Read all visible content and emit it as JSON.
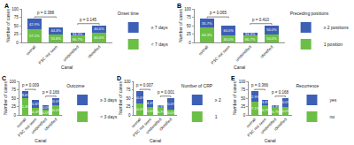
{
  "chart_data": [
    {
      "type": "bar",
      "panel": "A",
      "stacked": true,
      "grid": false,
      "legend": "top right",
      "x_label": "Canal",
      "y_label": "Number of cases",
      "legend_title": "Onset time",
      "categories": [
        "overall",
        "PSC not seen",
        "unidentified",
        "identified"
      ],
      "ylim": [
        0,
        100
      ],
      "yticks": [
        0,
        25,
        50,
        75,
        100
      ],
      "series": [
        {
          "name": "< 7 days",
          "color": "#6cbf45",
          "values": [
            40,
            25,
            20,
            30
          ],
          "labels": [
            "57.1%",
            "55.6%",
            "66.7%",
            "60.0%"
          ]
        },
        {
          "name": "≥ 7 days",
          "color": "#3d5fb5",
          "values": [
            30,
            20,
            10,
            20
          ],
          "labels": [
            "42.9%",
            "44.4%",
            "33.3%",
            "40.0%"
          ]
        }
      ],
      "annotations": [
        {
          "text": "p = 0.388",
          "categories": [
            "overall",
            "PSC not seen"
          ]
        },
        {
          "text": "p = 0.145",
          "categories": [
            "unidentified",
            "identified"
          ]
        }
      ]
    },
    {
      "type": "bar",
      "panel": "B",
      "stacked": true,
      "grid": false,
      "legend": "top right",
      "x_label": "Canal",
      "y_label": "Number of cases",
      "legend_title": "Preceding positions",
      "categories": [
        "overall",
        "PSC not seen",
        "unidentified",
        "identified"
      ],
      "ylim": [
        0,
        100
      ],
      "yticks": [
        0,
        25,
        50,
        75,
        100
      ],
      "series": [
        {
          "name": "1 position",
          "color": "#6cbf45",
          "values": [
            45,
            20,
            20,
            25
          ],
          "labels": [
            "64.3%",
            "40.0%",
            "66.7%",
            "50.0%"
          ]
        },
        {
          "name": "≥ 2 positions",
          "color": "#3d5fb5",
          "values": [
            25,
            30,
            10,
            25
          ],
          "labels": [
            "35.7%",
            "60.0%",
            "33.3%",
            "50.0%"
          ]
        }
      ],
      "annotations": [
        {
          "text": "p = 0.065",
          "categories": [
            "overall",
            "PSC not seen"
          ]
        },
        {
          "text": "p = 0.410",
          "categories": [
            "unidentified",
            "identified"
          ]
        }
      ]
    },
    {
      "type": "bar",
      "panel": "C",
      "stacked": true,
      "grid": false,
      "legend": "top right",
      "x_label": "Canal",
      "y_label": "Number of cases",
      "legend_title": "Outcome",
      "categories": [
        "overall",
        "PSC not seen",
        "unidentified",
        "identified"
      ],
      "ylim": [
        0,
        100
      ],
      "yticks": [
        0,
        25,
        50,
        75,
        100
      ],
      "series": [
        {
          "name": "< 3 days",
          "color": "#6cbf45",
          "values": [
            50,
            20,
            15,
            30
          ],
          "labels": [
            "71.4%",
            "44.4%",
            "50.0%",
            "60.0%"
          ]
        },
        {
          "name": "≥ 3 days",
          "color": "#3d5fb5",
          "values": [
            20,
            25,
            15,
            20
          ],
          "labels": [
            "28.6%",
            "55.6%",
            "50.0%",
            "40.0%"
          ]
        }
      ],
      "annotations": [
        {
          "text": "p = 0.009",
          "categories": [
            "overall",
            "PSC not seen"
          ]
        },
        {
          "text": "p = 0.166",
          "categories": [
            "unidentified",
            "identified"
          ]
        }
      ]
    },
    {
      "type": "bar",
      "panel": "D",
      "stacked": true,
      "grid": false,
      "legend": "top right",
      "x_label": "Canal",
      "y_label": "Number of cases",
      "legend_title": "Number of CRP",
      "categories": [
        "overall",
        "PSC not seen",
        "unidentified",
        "identified"
      ],
      "ylim": [
        0,
        100
      ],
      "yticks": [
        0,
        25,
        50,
        75,
        100
      ],
      "series": [
        {
          "name": "1",
          "color": "#6cbf45",
          "values": [
            35,
            25,
            20,
            15
          ],
          "labels": [
            "50.0%",
            "55.6%",
            "66.7%",
            "30.0%"
          ]
        },
        {
          "name": "≥ 2",
          "color": "#3d5fb5",
          "values": [
            35,
            20,
            10,
            35
          ],
          "labels": [
            "50.0%",
            "44.4%",
            "33.3%",
            "70.0%"
          ]
        }
      ],
      "annotations": [
        {
          "text": "p = 0.007",
          "categories": [
            "overall",
            "PSC not seen"
          ]
        },
        {
          "text": "p = 0.001",
          "categories": [
            "unidentified",
            "identified"
          ]
        }
      ]
    },
    {
      "type": "bar",
      "panel": "E",
      "stacked": true,
      "grid": false,
      "legend": "top right",
      "x_label": "Canal",
      "y_label": "Number of cases",
      "legend_title": "Recurrence",
      "categories": [
        "overall",
        "PSC not seen",
        "unidentified",
        "identified"
      ],
      "ylim": [
        0,
        100
      ],
      "yticks": [
        0,
        25,
        50,
        75,
        100
      ],
      "series": [
        {
          "name": "no",
          "color": "#6cbf45",
          "values": [
            40,
            30,
            20,
            25
          ],
          "labels": [
            "57.1%",
            "66.7%",
            "66.7%",
            "50.0%"
          ]
        },
        {
          "name": "yes",
          "color": "#3d5fb5",
          "values": [
            30,
            15,
            10,
            25
          ],
          "labels": [
            "42.9%",
            "33.3%",
            "33.3%",
            "50.0%"
          ]
        }
      ],
      "annotations": [
        {
          "text": "p = 0.366",
          "categories": [
            "overall",
            "PSC not seen"
          ]
        },
        {
          "text": "p = 0.168",
          "categories": [
            "unidentified",
            "identified"
          ]
        }
      ]
    }
  ]
}
